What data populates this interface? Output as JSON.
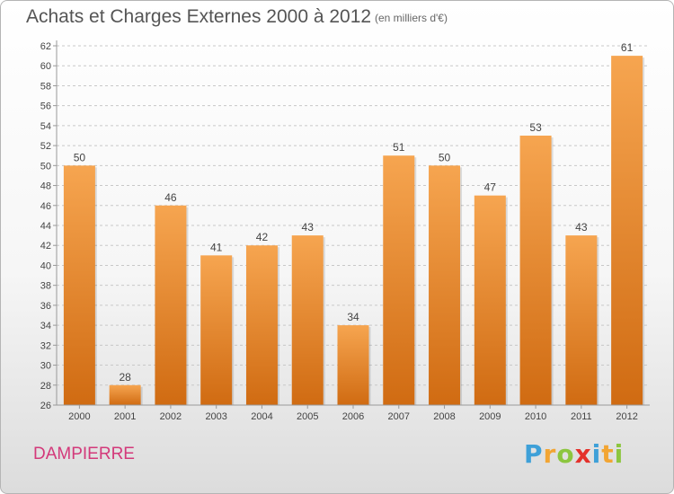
{
  "header": {
    "title": "Achats et Charges Externes 2000 à 2012",
    "unit_note": "(en milliers d'€)"
  },
  "footer": {
    "commune": "DAMPIERRE",
    "logo_text": "Proxiti"
  },
  "colors": {
    "bar_top": "#f6a550",
    "bar_bottom": "#d06b12",
    "axis": "#999999",
    "grid": "#c8c8c8",
    "commune": "#d3397a"
  },
  "chart_data": {
    "type": "bar",
    "title": "Achats et Charges Externes 2000 à 2012",
    "categories": [
      "2000",
      "2001",
      "2002",
      "2003",
      "2004",
      "2005",
      "2006",
      "2007",
      "2008",
      "2009",
      "2010",
      "2011",
      "2012"
    ],
    "values": [
      50,
      28,
      46,
      41,
      42,
      43,
      34,
      51,
      50,
      47,
      53,
      43,
      61
    ],
    "ylim": [
      26,
      62
    ],
    "yticks": [
      26,
      28,
      30,
      32,
      34,
      36,
      38,
      40,
      42,
      44,
      46,
      48,
      50,
      52,
      54,
      56,
      58,
      60,
      62
    ],
    "grid": "horizontal dashed",
    "data_labels": true
  }
}
